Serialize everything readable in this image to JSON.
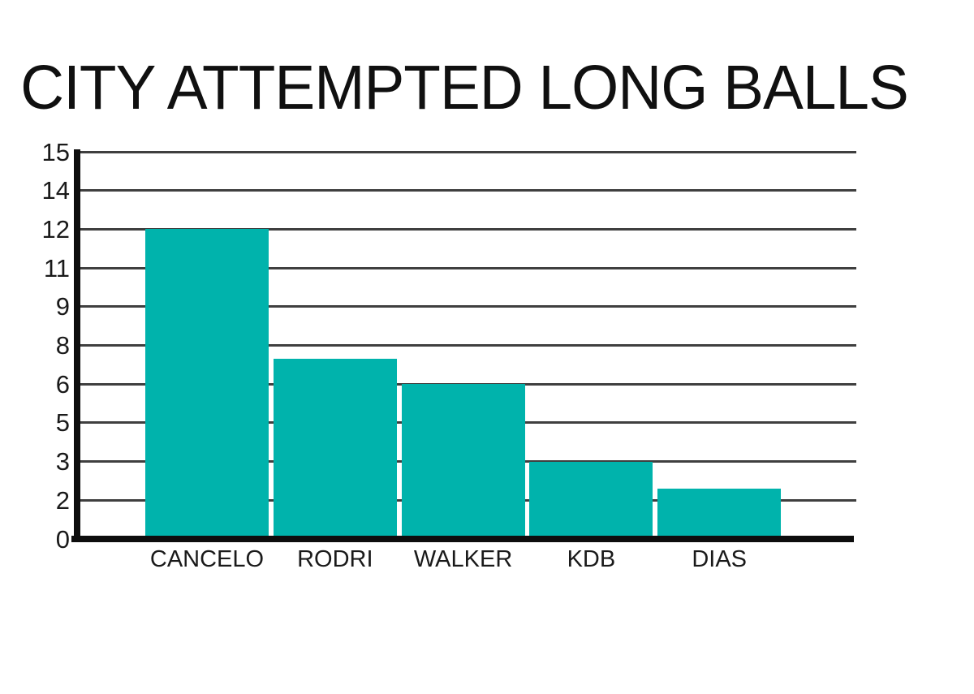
{
  "chart_data": {
    "type": "bar",
    "title": "CITY ATTEMPTED LONG BALLS",
    "categories": [
      "CANCELO",
      "RODRI",
      "WALKER",
      "KDB",
      "DIAS"
    ],
    "values": [
      12,
      7.3,
      6,
      3,
      2.3
    ],
    "values_note": "RODRI and DIAS bar tops fall between gridlines; estimated to ~0.1",
    "xlabel": "",
    "ylabel": "",
    "y_tick_labels_top_to_bottom": [
      "15",
      "14",
      "12",
      "11",
      "9",
      "8",
      "6",
      "5",
      "3",
      "2",
      "0"
    ],
    "y_ticks_numeric_bottom_to_top": [
      0,
      2,
      3,
      5,
      6,
      8,
      9,
      11,
      12,
      14,
      15
    ],
    "axis_note": "ticks evenly spaced but labels skip 1, 4, 7, 10, 13; value scale interpolated between adjacent tick labels",
    "grid": true,
    "legend": false,
    "colors": {
      "bar": "#00b3ac",
      "gridline": "#3f3f3f",
      "axis": "#0d0d0d",
      "text": "#1a1a1a",
      "background": "#ffffff"
    }
  }
}
